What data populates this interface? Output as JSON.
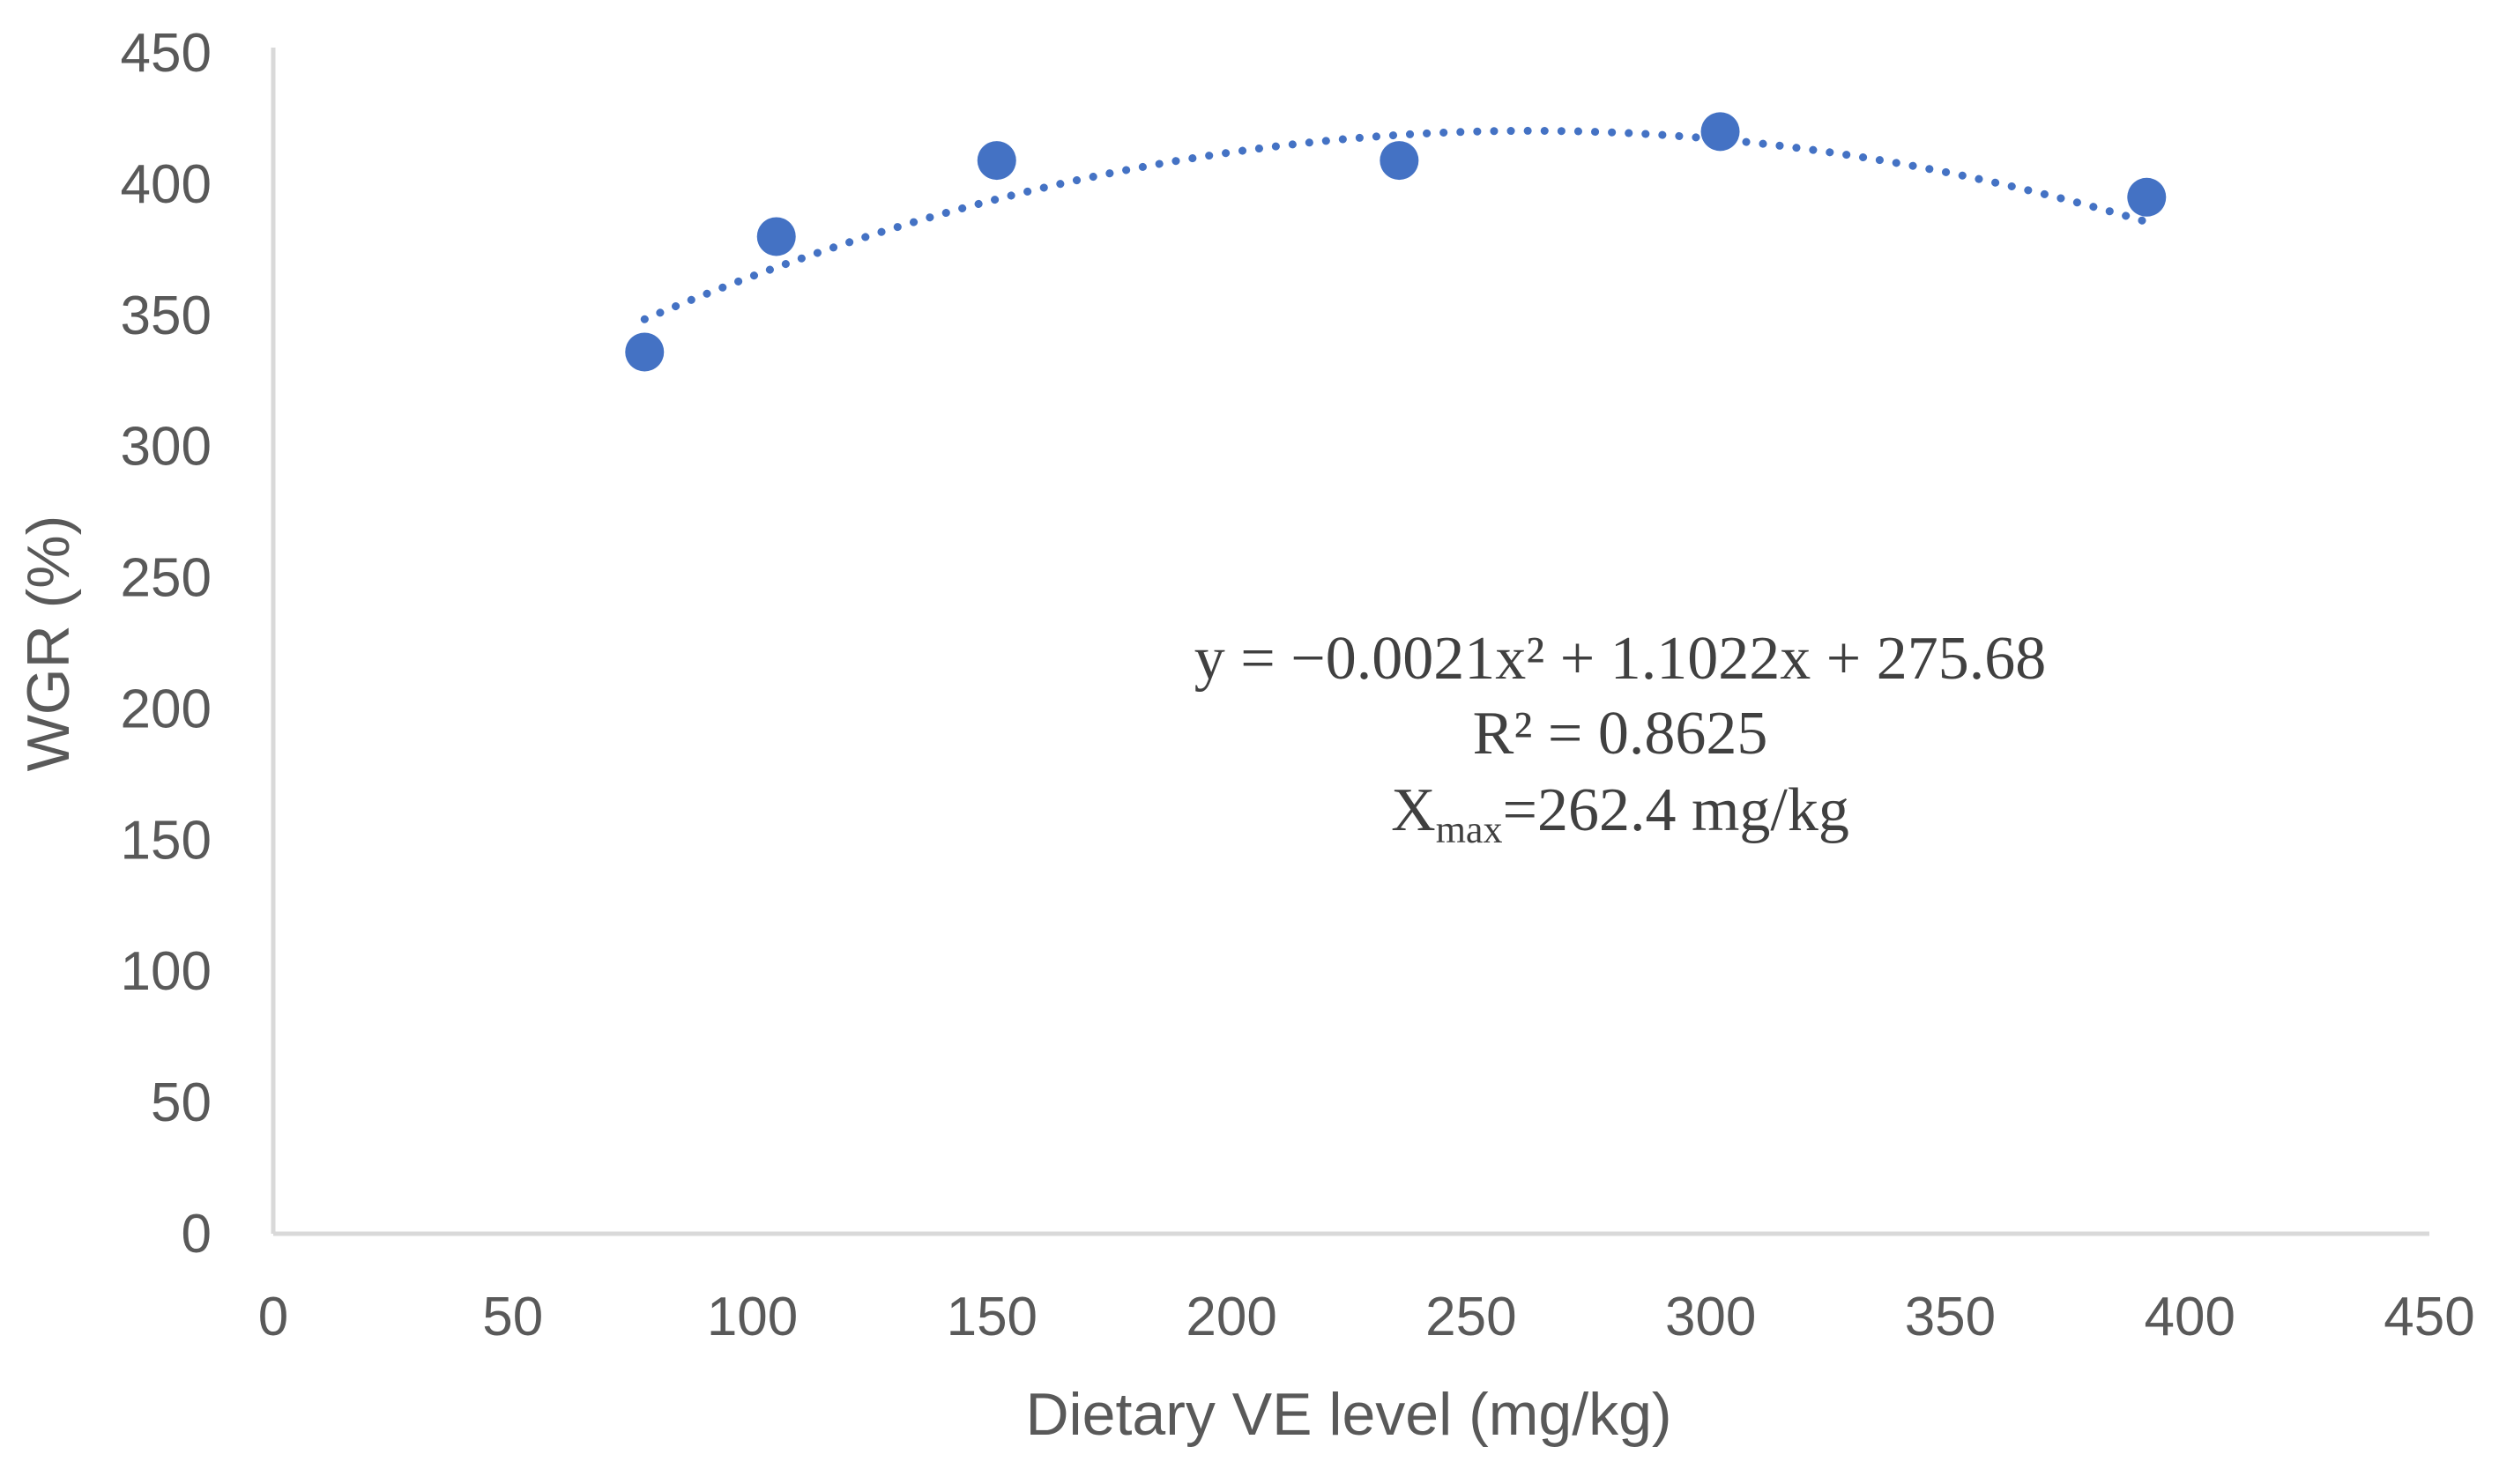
{
  "chart_data": {
    "type": "scatter",
    "title": "",
    "xlabel": "Dietary  VE level (mg/kg)",
    "ylabel": "WGR (%)",
    "xlim": [
      0,
      450
    ],
    "ylim": [
      0,
      450
    ],
    "x_ticks": [
      0,
      50,
      100,
      150,
      200,
      250,
      300,
      350,
      400,
      450
    ],
    "y_ticks": [
      0,
      50,
      100,
      150,
      200,
      250,
      300,
      350,
      400,
      450
    ],
    "grid": false,
    "legend": "none",
    "series": [
      {
        "name": "WGR",
        "color": "#4472C4",
        "x": [
          77.5,
          105,
          151,
          235,
          302,
          391
        ],
        "y": [
          336,
          380,
          409,
          409,
          420,
          395
        ]
      }
    ],
    "trendline": {
      "type": "polynomial",
      "order": 2,
      "style": "dotted",
      "color": "#4472C4",
      "coefficients": {
        "a": -0.0021,
        "b": 1.1022,
        "c": 275.68
      },
      "x_range": [
        77.5,
        391
      ]
    },
    "annotations": {
      "equation": "y = −0.0021x² + 1.1022x + 275.68",
      "r_squared": "R² = 0.8625",
      "xmax_prefix": "X",
      "xmax_subscript": "max",
      "xmax_value": "=262.4 mg/kg"
    }
  }
}
